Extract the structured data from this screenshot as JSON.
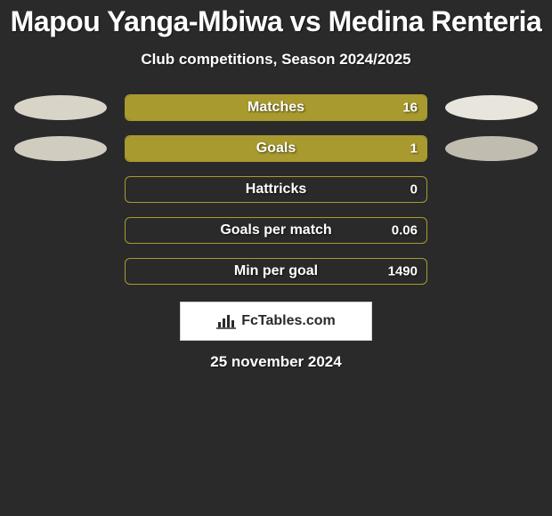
{
  "title": "Mapou Yanga-Mbiwa vs Medina Renteria",
  "subtitle": "Club competitions, Season 2024/2025",
  "date": "25 november 2024",
  "badge": {
    "text": "FcTables.com"
  },
  "colors": {
    "bg": "#2a2a2a",
    "bar_border": "#a89a2e",
    "bar_fill": "#a89a2e",
    "ellipse_left_1": "#d8d4c8",
    "ellipse_right_1": "#e8e6dc",
    "ellipse_left_2": "#d0ccc0",
    "ellipse_right_2": "#c0bcb0",
    "text": "#ffffff"
  },
  "stats": [
    {
      "label": "Matches",
      "value": "16",
      "fill_pct": 100,
      "left_ellipse": true,
      "right_ellipse": true,
      "left_ellipse_color": "#d8d4c8",
      "right_ellipse_color": "#e8e6dc"
    },
    {
      "label": "Goals",
      "value": "1",
      "fill_pct": 100,
      "left_ellipse": true,
      "right_ellipse": true,
      "left_ellipse_color": "#d0ccc0",
      "right_ellipse_color": "#c0bcb0"
    },
    {
      "label": "Hattricks",
      "value": "0",
      "fill_pct": 0,
      "left_ellipse": false,
      "right_ellipse": false
    },
    {
      "label": "Goals per match",
      "value": "0.06",
      "fill_pct": 0,
      "left_ellipse": false,
      "right_ellipse": false
    },
    {
      "label": "Min per goal",
      "value": "1490",
      "fill_pct": 0,
      "left_ellipse": false,
      "right_ellipse": false
    }
  ]
}
